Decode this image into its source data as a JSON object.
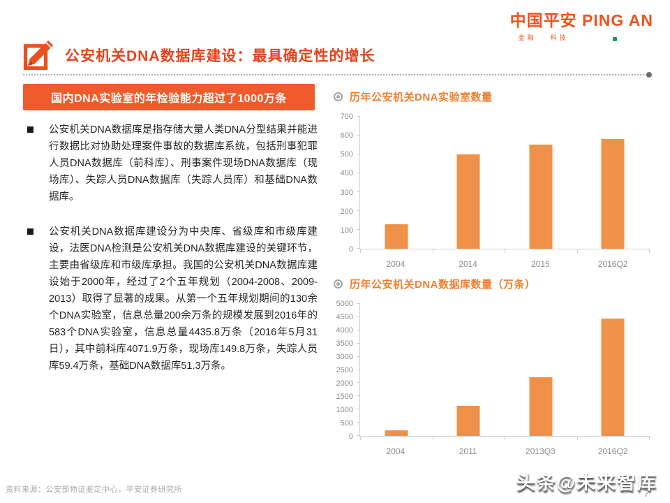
{
  "logo": {
    "brand": "中国平安 PING AN",
    "tagline": "金融 · 科技"
  },
  "header": {
    "title": "公安机关DNA数据库建设：最具确定性的增长"
  },
  "left_panel": {
    "headline": "国内DNA实验室的年检验能力超过了1000万条",
    "bullets": [
      "公安机关DNA数据库是指存储大量人类DNA分型结果并能进行数据比对协助处理案件事故的数据库系统，包括刑事犯罪人员DNA数据库（前科库）、刑事案件现场DNA数据库（现场库）、失踪人员DNA数据库（失踪人员库）和基础DNA数据库。",
      "公安机关DNA数据库建设分为中央库、省级库和市级库建设，法医DNA检测是公安机关DNA数据库建设的关键环节，主要由省级库和市级库承担。我国的公安机关DNA数据库建设始于2000年，经过了2个五年规划（2004-2008、2009-2013）取得了显著的成果。从第一个五年规划期间的130余个DNA实验室，信息总量200余万条的规模发展到2016年的583个DNA实验室，信息总量4435.8万条（2016年5月31日），其中前科库4071.9万条，现场库149.8万条，失踪人员库59.4万条，基础DNA数据库51.3万条。"
    ]
  },
  "chart_data": [
    {
      "type": "bar",
      "title": "历年公安机关DNA实验室数量",
      "categories": [
        "2004",
        "2014",
        "2015",
        "2016Q2"
      ],
      "values": [
        130,
        500,
        552,
        583
      ],
      "ylim": [
        0,
        700
      ],
      "ytick_step": 100,
      "xlabel": "",
      "ylabel": "",
      "grid": false,
      "legend": "none",
      "bar_color": "#F09149"
    },
    {
      "type": "bar",
      "title": "历年公安机关DNA数据库数量（万条）",
      "categories": [
        "2004",
        "2011",
        "2013Q3",
        "2016Q2"
      ],
      "values": [
        200,
        1150,
        2230,
        4436
      ],
      "ylim": [
        0,
        5000
      ],
      "ytick_step": 500,
      "xlabel": "",
      "ylabel": "",
      "grid": false,
      "legend": "none",
      "bar_color": "#F09149"
    }
  ],
  "footer": {
    "source": "资料来源：公安部物证鉴定中心，平安证券研究所",
    "page_number": "7",
    "watermark": "头条@未来智库"
  },
  "colors": {
    "brand": "#F0511E",
    "title_text": "#E5431E",
    "headline_bg": "#F05B2B",
    "chart_title": "#F07E2D",
    "bar": "#F09149",
    "axis_text": "#8C8C8C",
    "logo_accent_green": "#00A650"
  }
}
